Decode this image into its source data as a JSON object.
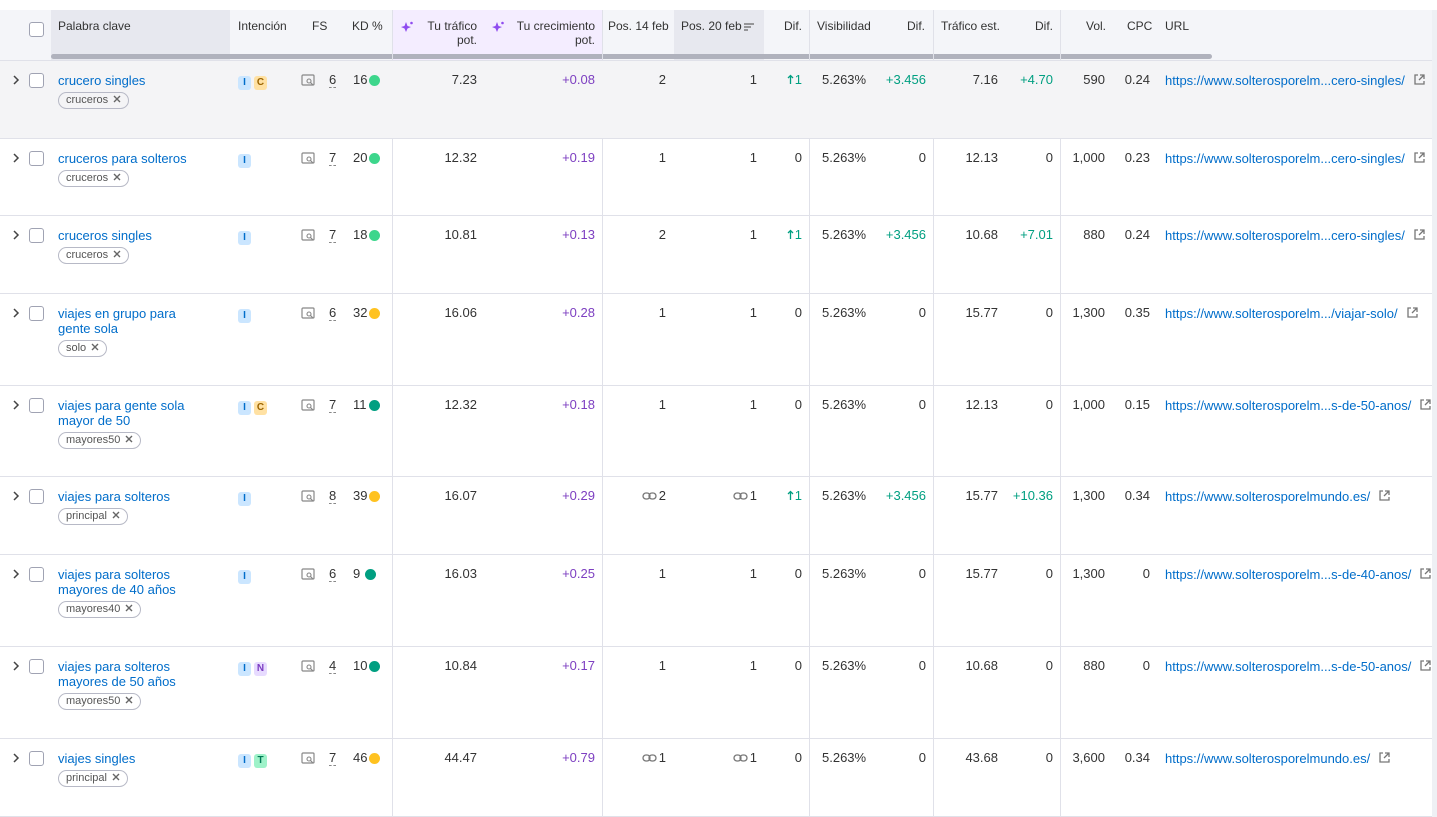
{
  "header": {
    "columns": [
      "Palabra clave",
      "Intención",
      "FS",
      "KD %",
      "Tu tráfico pot.",
      "Tu crecimiento pot.",
      "Pos. 14 feb",
      "Pos. 20 feb",
      "Dif.",
      "Visibilidad",
      "Dif.",
      "Tráfico est.",
      "Dif.",
      "Vol.",
      "CPC",
      "URL"
    ]
  },
  "rows": [
    {
      "keyword": "crucero singles",
      "tag": "cruceros",
      "intents": [
        "I",
        "C"
      ],
      "fs": "6",
      "kd": "16",
      "kd_color": "#3dd68c",
      "trafico_pot": "7.23",
      "crecimiento": "+0.08",
      "pos14": "2",
      "pos20": "1",
      "pos_link": false,
      "dif": "1",
      "dif_up": true,
      "visibilidad": "5.263%",
      "vis_dif": "+3.456",
      "trafico": "7.16",
      "traf_dif": "+4.70",
      "vol": "590",
      "cpc": "0.24",
      "url": "https://www.solterosporelm...cero-singles/"
    },
    {
      "keyword": "cruceros para solteros",
      "tag": "cruceros",
      "intents": [
        "I"
      ],
      "fs": "7",
      "kd": "20",
      "kd_color": "#3dd68c",
      "trafico_pot": "12.32",
      "crecimiento": "+0.19",
      "pos14": "1",
      "pos20": "1",
      "pos_link": false,
      "dif": "0",
      "dif_up": false,
      "visibilidad": "5.263%",
      "vis_dif": "0",
      "trafico": "12.13",
      "traf_dif": "0",
      "vol": "1,000",
      "cpc": "0.23",
      "url": "https://www.solterosporelm...cero-singles/"
    },
    {
      "keyword": "cruceros singles",
      "tag": "cruceros",
      "intents": [
        "I"
      ],
      "fs": "7",
      "kd": "18",
      "kd_color": "#3dd68c",
      "trafico_pot": "10.81",
      "crecimiento": "+0.13",
      "pos14": "2",
      "pos20": "1",
      "pos_link": false,
      "dif": "1",
      "dif_up": true,
      "visibilidad": "5.263%",
      "vis_dif": "+3.456",
      "trafico": "10.68",
      "traf_dif": "+7.01",
      "vol": "880",
      "cpc": "0.24",
      "url": "https://www.solterosporelm...cero-singles/"
    },
    {
      "keyword": "viajes en grupo para gente sola",
      "tag": "solo",
      "intents": [
        "I"
      ],
      "fs": "6",
      "kd": "32",
      "kd_color": "#ffc220",
      "trafico_pot": "16.06",
      "crecimiento": "+0.28",
      "pos14": "1",
      "pos20": "1",
      "pos_link": false,
      "dif": "0",
      "dif_up": false,
      "visibilidad": "5.263%",
      "vis_dif": "0",
      "trafico": "15.77",
      "traf_dif": "0",
      "vol": "1,300",
      "cpc": "0.35",
      "url": "https://www.solterosporelm.../viajar-solo/"
    },
    {
      "keyword": "viajes para gente sola mayor de 50",
      "tag": "mayores50",
      "intents": [
        "I",
        "C"
      ],
      "fs": "7",
      "kd": "11",
      "kd_color": "#009f81",
      "trafico_pot": "12.32",
      "crecimiento": "+0.18",
      "pos14": "1",
      "pos20": "1",
      "pos_link": false,
      "dif": "0",
      "dif_up": false,
      "visibilidad": "5.263%",
      "vis_dif": "0",
      "trafico": "12.13",
      "traf_dif": "0",
      "vol": "1,000",
      "cpc": "0.15",
      "url": "https://www.solterosporelm...s-de-50-anos/"
    },
    {
      "keyword": "viajes para solteros",
      "tag": "principal",
      "intents": [
        "I"
      ],
      "fs": "8",
      "kd": "39",
      "kd_color": "#ffc220",
      "trafico_pot": "16.07",
      "crecimiento": "+0.29",
      "pos14": "2",
      "pos20": "1",
      "pos_link": true,
      "dif": "1",
      "dif_up": true,
      "visibilidad": "5.263%",
      "vis_dif": "+3.456",
      "trafico": "15.77",
      "traf_dif": "+10.36",
      "vol": "1,300",
      "cpc": "0.34",
      "url": "https://www.solterosporelmundo.es/"
    },
    {
      "keyword": "viajes para solteros mayores de 40 años",
      "tag": "mayores40",
      "intents": [
        "I"
      ],
      "fs": "6",
      "kd": "9",
      "kd_color": "#009f81",
      "trafico_pot": "16.03",
      "crecimiento": "+0.25",
      "pos14": "1",
      "pos20": "1",
      "pos_link": false,
      "dif": "0",
      "dif_up": false,
      "visibilidad": "5.263%",
      "vis_dif": "0",
      "trafico": "15.77",
      "traf_dif": "0",
      "vol": "1,300",
      "cpc": "0",
      "url": "https://www.solterosporelm...s-de-40-anos/"
    },
    {
      "keyword": "viajes para solteros mayores de 50 años",
      "tag": "mayores50",
      "intents": [
        "I",
        "N"
      ],
      "fs": "4",
      "kd": "10",
      "kd_color": "#009f81",
      "trafico_pot": "10.84",
      "crecimiento": "+0.17",
      "pos14": "1",
      "pos20": "1",
      "pos_link": false,
      "dif": "0",
      "dif_up": false,
      "visibilidad": "5.263%",
      "vis_dif": "0",
      "trafico": "10.68",
      "traf_dif": "0",
      "vol": "880",
      "cpc": "0",
      "url": "https://www.solterosporelm...s-de-50-anos/"
    },
    {
      "keyword": "viajes singles",
      "tag": "principal",
      "intents": [
        "I",
        "T"
      ],
      "fs": "7",
      "kd": "46",
      "kd_color": "#ffc220",
      "trafico_pot": "44.47",
      "crecimiento": "+0.79",
      "pos14": "1",
      "pos20": "1",
      "pos_link": true,
      "dif": "0",
      "dif_up": false,
      "visibilidad": "5.263%",
      "vis_dif": "0",
      "trafico": "43.68",
      "traf_dif": "0",
      "vol": "3,600",
      "cpc": "0.34",
      "url": "https://www.solterosporelmundo.es/"
    }
  ]
}
